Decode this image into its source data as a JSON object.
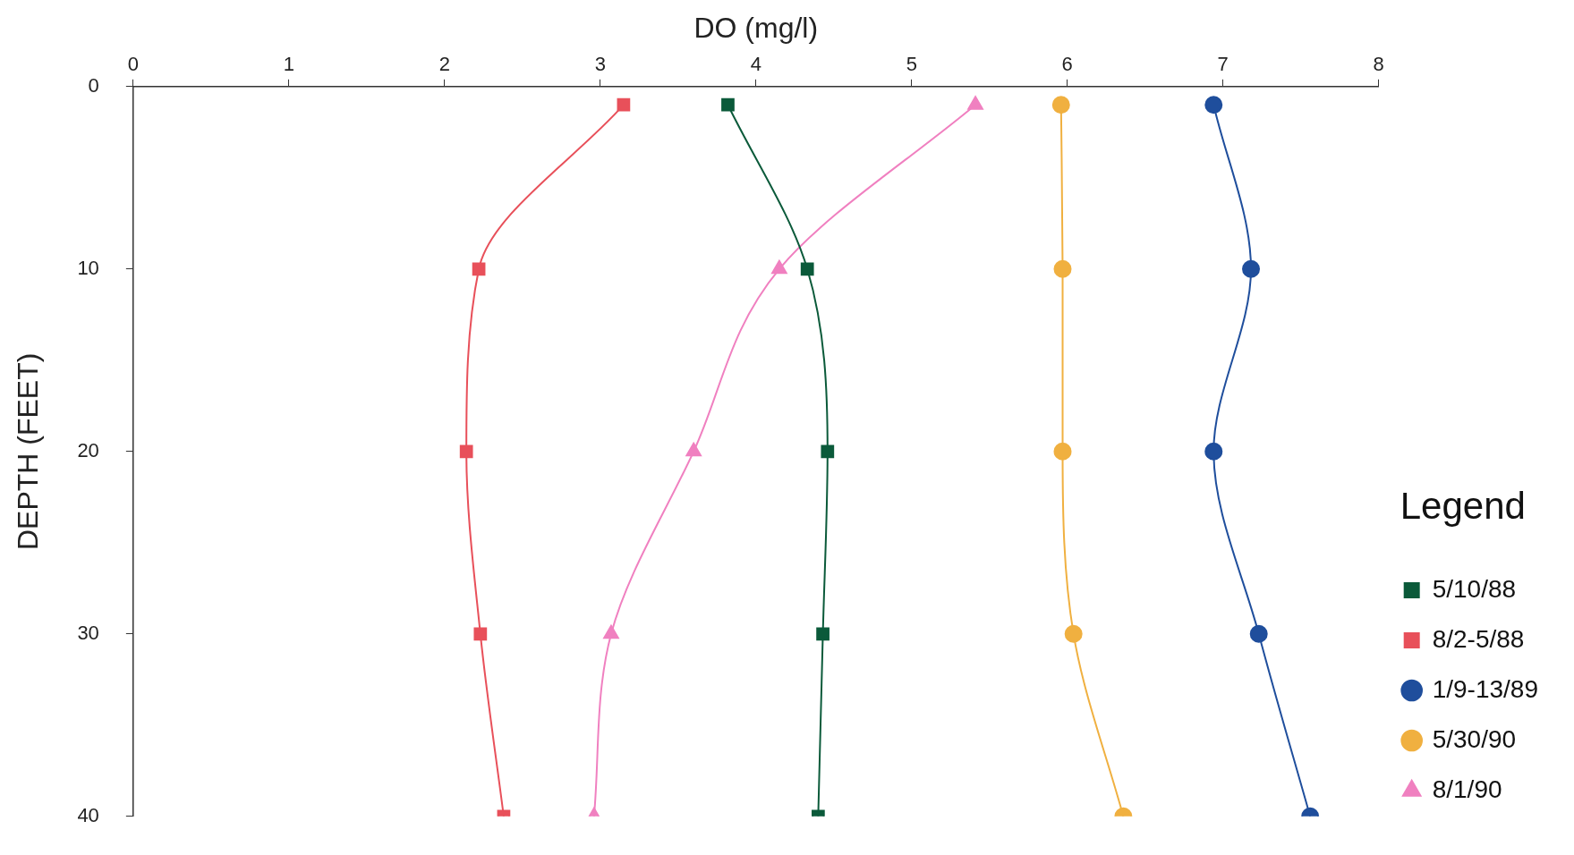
{
  "chart_data": {
    "type": "line",
    "xlabel": "DO (mg/l)",
    "ylabel": "DEPTH (FEET)",
    "legend_title": "Legend",
    "xlim": [
      0,
      8
    ],
    "xticks": [
      0,
      1,
      2,
      3,
      4,
      5,
      6,
      7,
      8
    ],
    "ylim": [
      40,
      0
    ],
    "yticks": [
      0,
      10,
      20,
      30,
      40
    ],
    "grid": false,
    "legend": "right",
    "series": [
      {
        "name": "5/10/88",
        "color": "#0b5a3a",
        "marker": "square",
        "x": [
          3.82,
          4.33,
          4.46,
          4.43,
          4.4
        ],
        "values": [
          1,
          10,
          20,
          30,
          40
        ]
      },
      {
        "name": "8/2-5/88",
        "color": "#e8505a",
        "marker": "square",
        "x": [
          3.15,
          2.22,
          2.14,
          2.23,
          2.38
        ],
        "values": [
          1,
          10,
          20,
          30,
          40
        ]
      },
      {
        "name": "1/9-13/89",
        "color": "#1f4e9c",
        "marker": "circle",
        "x": [
          6.94,
          7.18,
          6.94,
          7.23,
          7.56
        ],
        "values": [
          1,
          10,
          20,
          30,
          40
        ]
      },
      {
        "name": "5/30/90",
        "color": "#f0b040",
        "marker": "circle",
        "x": [
          5.96,
          5.97,
          5.97,
          6.04,
          6.36
        ],
        "values": [
          1,
          10,
          20,
          30,
          40
        ]
      },
      {
        "name": "8/1/90",
        "color": "#f080c0",
        "marker": "triangle",
        "x": [
          5.41,
          4.15,
          3.6,
          3.07,
          2.96
        ],
        "values": [
          1,
          10,
          20,
          30,
          40
        ]
      }
    ]
  }
}
